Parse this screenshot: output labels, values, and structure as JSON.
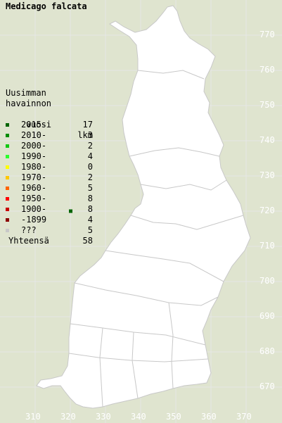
{
  "title": "Medicago falcata",
  "legend": {
    "header": [
      "Uusimman",
      "havainnon",
      "vuosi"
    ],
    "count_header": "lkm",
    "entries": [
      {
        "label": "2015-",
        "count": "17",
        "color": "#006400"
      },
      {
        "label": "2010-",
        "count": "3",
        "color": "#008c00"
      },
      {
        "label": "2000-",
        "count": "2",
        "color": "#14c814"
      },
      {
        "label": "1990-",
        "count": "4",
        "color": "#2cff2c"
      },
      {
        "label": "1980-",
        "count": "0",
        "color": "#ffff00"
      },
      {
        "label": "1970-",
        "count": "2",
        "color": "#ffc800"
      },
      {
        "label": "1960-",
        "count": "5",
        "color": "#ff6400"
      },
      {
        "label": "1950-",
        "count": "8",
        "color": "#ff0000"
      },
      {
        "label": "1900-",
        "count": "8",
        "color": "#c80000"
      },
      {
        "label": "-1899",
        "count": "4",
        "color": "#8c0000"
      },
      {
        "label": "???",
        "count": "5",
        "color": "#c8c8c8"
      }
    ],
    "total_label": "Yhteensä",
    "total_count": "58"
  },
  "y_ticks": [
    "770",
    "760",
    "750",
    "740",
    "730",
    "720",
    "710",
    "700",
    "690",
    "680",
    "670"
  ],
  "x_ticks": [
    "310",
    "320",
    "330",
    "340",
    "350",
    "360",
    "370"
  ],
  "colors": {
    "background": "#dfe4cf",
    "land": "#ffffff",
    "border": "#c8c8c8",
    "grid": "#e6e6e6",
    "tick_text": "#ffffff"
  },
  "observations": [
    {
      "e": 320.1,
      "n": 720.0,
      "period": "2015-"
    }
  ]
}
